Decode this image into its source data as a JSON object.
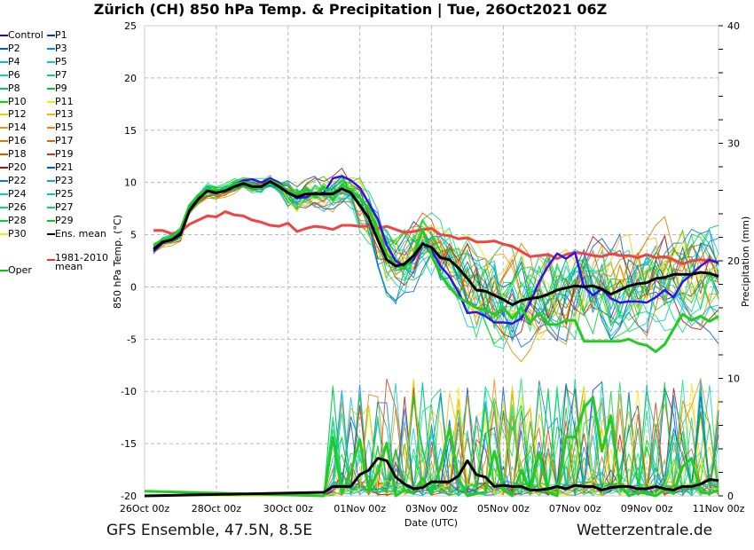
{
  "title": "Zürich  (CH)  850 hPa Temp. & Precipitation | Tue, 26Oct2021 06Z",
  "footer": {
    "left": "GFS Ensemble, 47.5N, 8.5E",
    "right": "Wetterzentrale.de"
  },
  "legend": [
    {
      "name": "Control",
      "color": "#2200dd"
    },
    {
      "name": "P1",
      "color": "#0033dd"
    },
    {
      "name": "P2",
      "color": "#0055dd"
    },
    {
      "name": "P3",
      "color": "#0088ee"
    },
    {
      "name": "P4",
      "color": "#00bbdd"
    },
    {
      "name": "P5",
      "color": "#00ccdd"
    },
    {
      "name": "P6",
      "color": "#00dd99"
    },
    {
      "name": "P7",
      "color": "#00dd77"
    },
    {
      "name": "P8",
      "color": "#00cc55"
    },
    {
      "name": "P9",
      "color": "#00cc22"
    },
    {
      "name": "P10",
      "color": "#00dd00"
    },
    {
      "name": "P11",
      "color": "#eeee00"
    },
    {
      "name": "P12",
      "color": "#eecc00"
    },
    {
      "name": "P13",
      "color": "#eebb00"
    },
    {
      "name": "P14",
      "color": "#ee9900"
    },
    {
      "name": "P15",
      "color": "#ee8800"
    },
    {
      "name": "P16",
      "color": "#dd7700"
    },
    {
      "name": "P17",
      "color": "#dd6600"
    },
    {
      "name": "P18",
      "color": "#dd5500"
    },
    {
      "name": "P19",
      "color": "#cc3311"
    },
    {
      "name": "P20",
      "color": "#aa1111"
    },
    {
      "name": "P21",
      "color": "#0055dd"
    },
    {
      "name": "P22",
      "color": "#0077ee"
    },
    {
      "name": "P23",
      "color": "#00aaee"
    },
    {
      "name": "P24",
      "color": "#00ccdd"
    },
    {
      "name": "P25",
      "color": "#00ccaa"
    },
    {
      "name": "P26",
      "color": "#00dd77"
    },
    {
      "name": "P27",
      "color": "#00dd55"
    },
    {
      "name": "P28",
      "color": "#00cc33"
    },
    {
      "name": "P29",
      "color": "#00cc11"
    },
    {
      "name": "P30",
      "color": "#eeee00"
    },
    {
      "name": "Ens. mean",
      "color": "#000000"
    },
    {
      "name": "Oper",
      "color": "#00cc00"
    },
    {
      "name": "1981-2010 mean",
      "color": "#ee3333"
    }
  ],
  "chart_data": {
    "type": "line",
    "title": "Zürich  (CH)  850 hPa Temp. & Precipitation | Tue, 26Oct2021 06Z",
    "xlabel": "Date (UTC)",
    "ylabel": "850 hPa Temp. (°C)",
    "ylabel_right": "Precipitation (mm)",
    "x_ticks": [
      "26Oct 00z",
      "28Oct 00z",
      "30Oct 00z",
      "01Nov 00z",
      "03Nov 00z",
      "05Nov 00z",
      "07Nov 00z",
      "09Nov 00z",
      "11Nov 00z"
    ],
    "x_range_days": [
      0,
      16
    ],
    "ylim": [
      -20,
      25
    ],
    "y_ticks": [
      -20,
      -15,
      -10,
      -5,
      0,
      5,
      10,
      15,
      20,
      25
    ],
    "ylim_right": [
      0,
      40
    ],
    "y_ticks_right": [
      0,
      10,
      20,
      30,
      40
    ],
    "grid": true,
    "legend_position": "left-outside",
    "temperature_series": [
      {
        "name": "Ens. mean",
        "color": "#000000",
        "x": [
          0.25,
          0.5,
          0.75,
          1,
          1.25,
          1.5,
          1.75,
          2,
          2.25,
          2.5,
          2.75,
          3,
          3.25,
          3.5,
          3.75,
          4,
          4.25,
          4.5,
          4.75,
          5,
          5.25,
          5.5,
          5.75,
          6,
          6.25,
          6.5,
          6.75,
          7,
          7.25,
          7.5,
          7.75,
          8,
          8.25,
          8.5,
          8.75,
          9,
          9.25,
          9.5,
          9.75,
          10,
          10.25,
          10.5,
          10.75,
          11,
          11.25,
          11.5,
          11.75,
          12,
          12.25,
          12.5,
          12.75,
          13,
          13.25,
          13.5,
          13.75,
          14,
          14.25,
          14.5,
          14.75,
          15,
          15.25,
          15.5,
          15.75,
          16
        ],
        "y": [
          3.6,
          4.3,
          4.5,
          5.0,
          7.3,
          8.4,
          9.2,
          9.0,
          9.2,
          9.6,
          9.9,
          9.6,
          9.6,
          10.1,
          9.6,
          9.0,
          8.6,
          8.9,
          8.9,
          8.9,
          8.9,
          9.4,
          9.0,
          7.8,
          6.6,
          4.5,
          2.6,
          2.0,
          2.2,
          3.0,
          4.1,
          3.8,
          2.8,
          2.6,
          1.8,
          0.8,
          -0.3,
          -0.4,
          -0.8,
          -1.2,
          -1.7,
          -1.3,
          -1.1,
          -1.0,
          -0.7,
          -0.3,
          -0.1,
          0.1,
          0.0,
          0.1,
          -0.2,
          -0.7,
          -0.3,
          0.1,
          0.3,
          0.4,
          0.8,
          0.9,
          1.2,
          1.2,
          1.2,
          1.4,
          1.3,
          1.0
        ]
      },
      {
        "name": "Oper",
        "color": "#22cc22",
        "x": [
          0.25,
          0.5,
          0.75,
          1,
          1.25,
          1.5,
          1.75,
          2,
          2.25,
          2.5,
          2.75,
          3,
          3.25,
          3.5,
          3.75,
          4,
          4.25,
          4.5,
          4.75,
          5,
          5.25,
          5.5,
          5.75,
          6,
          6.25,
          6.5,
          6.75,
          7,
          7.25,
          7.5,
          7.75,
          8,
          8.25,
          8.5,
          8.75,
          9,
          9.25,
          9.5,
          9.75,
          10,
          10.25,
          10.5,
          10.75,
          11,
          11.25,
          11.5,
          11.75,
          12,
          12.25,
          12.5,
          12.75,
          13,
          13.25,
          13.5,
          13.75,
          14,
          14.25,
          14.5,
          14.75,
          15,
          15.25,
          15.5,
          15.75,
          16
        ],
        "y": [
          4.0,
          4.5,
          4.8,
          5.5,
          7.8,
          8.8,
          9.3,
          9.2,
          9.4,
          9.8,
          10.0,
          9.8,
          9.6,
          10.2,
          9.8,
          9.2,
          9.0,
          9.3,
          8.6,
          9.6,
          8.3,
          9.8,
          9.3,
          8.5,
          7.5,
          5.2,
          3.2,
          2.0,
          1.8,
          3.0,
          5.5,
          3.0,
          1.2,
          0.0,
          -1.0,
          -1.5,
          -2.0,
          -2.2,
          -2.6,
          -2.0,
          -3.0,
          -2.0,
          -3.4,
          -2.5,
          -3.6,
          -3.6,
          -3.2,
          -3.2,
          -5.2,
          -5.2,
          -5.2,
          -5.2,
          -5.2,
          -5.0,
          -5.4,
          -5.6,
          -6.2,
          -5.5,
          -4.0,
          -2.6,
          -3.2,
          -2.8,
          -3.3,
          -2.8
        ]
      },
      {
        "name": "Control",
        "color": "#3311ee",
        "x": [
          0.25,
          0.5,
          0.75,
          1,
          1.25,
          1.5,
          1.75,
          2,
          2.25,
          2.5,
          2.75,
          3,
          3.25,
          3.5,
          3.75,
          4,
          4.25,
          4.5,
          4.75,
          5,
          5.25,
          5.5,
          5.75,
          6,
          6.25,
          6.5,
          6.75,
          7,
          7.25,
          7.5,
          7.75,
          8,
          8.25,
          8.5,
          8.75,
          9,
          9.25,
          9.5,
          9.75,
          10,
          10.25,
          10.5,
          10.75,
          11,
          11.25,
          11.5,
          11.75,
          12,
          12.25,
          12.5,
          12.75,
          13,
          13.25,
          13.5,
          13.75,
          14,
          14.25,
          14.5,
          14.75,
          15,
          15.25,
          15.5,
          15.75,
          16
        ],
        "y": [
          3.4,
          4.2,
          4.6,
          5.2,
          7.4,
          8.6,
          9.3,
          9.0,
          9.4,
          9.8,
          10.2,
          10.3,
          10.0,
          10.4,
          10.0,
          9.0,
          8.5,
          8.6,
          9.0,
          9.0,
          10.4,
          10.6,
          10.2,
          9.5,
          8.0,
          6.5,
          4.0,
          2.5,
          2.0,
          2.6,
          4.2,
          3.5,
          2.0,
          1.0,
          -0.5,
          -2.5,
          -2.4,
          -2.8,
          -3.4,
          -3.4,
          -3.5,
          -3.0,
          -1.5,
          0.5,
          2.0,
          3.2,
          2.7,
          3.3,
          0.0,
          -0.8,
          -0.2,
          -1.1,
          -1.5,
          -1.4,
          -1.4,
          -1.5,
          -1.0,
          -0.3,
          -1.0,
          0.5,
          1.2,
          2.0,
          2.6,
          2.3
        ]
      },
      {
        "name": "1981-2010 mean",
        "color": "#ee4444",
        "x": [
          0.25,
          0.5,
          0.75,
          1,
          1.25,
          1.5,
          1.75,
          2,
          2.25,
          2.5,
          2.75,
          3,
          3.25,
          3.5,
          3.75,
          4,
          4.25,
          4.5,
          4.75,
          5,
          5.25,
          5.5,
          5.75,
          6,
          6.25,
          6.5,
          6.75,
          7,
          7.25,
          7.5,
          7.75,
          8,
          8.25,
          8.5,
          8.75,
          9,
          9.25,
          9.5,
          9.75,
          10,
          10.25,
          10.5,
          10.75,
          11,
          11.25,
          11.5,
          11.75,
          12,
          12.25,
          12.5,
          12.75,
          13,
          13.25,
          13.5,
          13.75,
          14,
          14.25,
          14.5,
          14.75,
          15,
          15.25,
          15.5,
          15.75,
          16
        ],
        "y": [
          5.4,
          5.4,
          5.1,
          5.3,
          6.0,
          6.4,
          6.8,
          6.7,
          7.2,
          6.9,
          6.8,
          6.4,
          6.2,
          5.9,
          5.8,
          6.1,
          5.3,
          5.6,
          5.8,
          5.7,
          5.5,
          5.9,
          5.9,
          5.8,
          5.8,
          5.6,
          5.8,
          5.5,
          5.2,
          5.3,
          5.5,
          5.6,
          5.0,
          4.9,
          4.6,
          4.7,
          4.3,
          4.3,
          4.4,
          4.1,
          3.9,
          3.4,
          2.9,
          3.0,
          3.1,
          2.7,
          3.1,
          3.3,
          3.2,
          3.0,
          2.9,
          3.2,
          3.0,
          3.0,
          2.8,
          3.1,
          2.8,
          2.9,
          2.6,
          2.2,
          2.5,
          2.6,
          2.5,
          2.4
        ]
      }
    ],
    "precipitation_series": [
      {
        "name": "Ens. mean",
        "color": "#000000",
        "unit": "mm",
        "x": [
          0,
          5,
          5.25,
          5.5,
          5.75,
          6,
          6.25,
          6.5,
          6.75,
          7,
          7.25,
          7.5,
          7.75,
          8,
          8.25,
          8.5,
          8.75,
          9,
          9.25,
          9.5,
          9.75,
          10,
          10.25,
          10.5,
          10.75,
          11,
          11.25,
          11.5,
          11.75,
          12,
          12.25,
          12.5,
          12.75,
          13,
          13.25,
          13.5,
          13.75,
          14,
          14.25,
          14.5,
          14.75,
          15,
          15.25,
          15.5,
          15.75,
          16
        ],
        "y": [
          0,
          0.3,
          0.8,
          0.8,
          0.8,
          1.8,
          2.2,
          3.2,
          3.0,
          1.6,
          1.0,
          0.6,
          0.7,
          1.2,
          1.2,
          1.2,
          1.7,
          3.0,
          1.8,
          1.6,
          0.8,
          0.9,
          0.8,
          0.8,
          0.5,
          0.5,
          0.6,
          0.8,
          0.6,
          0.9,
          0.8,
          0.8,
          0.5,
          0.7,
          0.8,
          0.8,
          0.6,
          0.6,
          0.8,
          0.6,
          0.5,
          0.8,
          0.8,
          1.0,
          1.4,
          1.3
        ]
      },
      {
        "name": "Oper",
        "color": "#22cc22",
        "unit": "mm",
        "x": [
          0,
          5,
          5.25,
          5.5,
          5.75,
          6,
          6.25,
          6.5,
          6.75,
          7,
          7.25,
          7.5,
          7.75,
          8,
          8.25,
          8.5,
          8.75,
          9,
          9.25,
          9.5,
          9.75,
          10,
          10.25,
          10.5,
          10.75,
          11,
          11.25,
          11.5,
          11.75,
          12,
          12.25,
          12.5,
          12.75,
          13,
          13.25,
          13.5,
          13.75,
          14,
          14.25,
          14.5,
          14.75,
          15,
          15.25,
          15.5,
          15.75,
          16
        ],
        "y": [
          0.4,
          0,
          5.0,
          0.2,
          2.0,
          4.8,
          0.5,
          2.0,
          4.5,
          0,
          0.5,
          0.3,
          1.5,
          0.2,
          2.5,
          5.8,
          1.5,
          0,
          0.2,
          0.3,
          3.8,
          0.5,
          0,
          2.2,
          0.3,
          3.7,
          0.3,
          0,
          5.0,
          5.0,
          7.5,
          8.4,
          3.8,
          6.8,
          1.0,
          0,
          0.3,
          0.2,
          0,
          0.5,
          0.2,
          2.5,
          3.2,
          0.3,
          0.2,
          0.5
        ]
      }
    ]
  }
}
